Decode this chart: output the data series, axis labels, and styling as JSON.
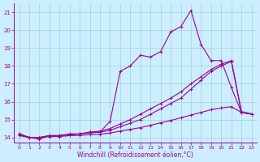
{
  "xlabel": "Windchill (Refroidissement éolien,°C)",
  "background_color": "#cceeff",
  "line_color": "#990099",
  "xlim": [
    -0.5,
    23.5
  ],
  "ylim": [
    13.7,
    21.5
  ],
  "yticks": [
    14,
    15,
    16,
    17,
    18,
    19,
    20,
    21
  ],
  "xticks": [
    0,
    1,
    2,
    3,
    4,
    5,
    6,
    7,
    8,
    9,
    10,
    11,
    12,
    13,
    14,
    15,
    16,
    17,
    18,
    19,
    20,
    21,
    22,
    23
  ],
  "series": [
    {
      "x": [
        0,
        1,
        2,
        3,
        4,
        5,
        6,
        7,
        8,
        9,
        10,
        11,
        12,
        13,
        14,
        15,
        16,
        17,
        18,
        19,
        20,
        21,
        22,
        23
      ],
      "y": [
        14.2,
        14.0,
        13.9,
        14.1,
        14.1,
        14.2,
        14.2,
        14.3,
        14.3,
        14.9,
        17.7,
        18.0,
        18.6,
        18.5,
        18.8,
        19.9,
        20.2,
        21.1,
        19.2,
        18.3,
        18.3,
        16.8,
        15.4,
        15.3
      ]
    },
    {
      "x": [
        0,
        1,
        2,
        3,
        4,
        5,
        6,
        7,
        8,
        9,
        10,
        11,
        12,
        13,
        14,
        15,
        16,
        17,
        18,
        19,
        20,
        21,
        22,
        23
      ],
      "y": [
        14.1,
        14.0,
        14.0,
        14.1,
        14.1,
        14.15,
        14.2,
        14.25,
        14.3,
        14.4,
        14.6,
        14.8,
        15.0,
        15.3,
        15.6,
        15.9,
        16.2,
        16.7,
        17.2,
        17.7,
        18.0,
        18.25,
        15.4,
        15.3
      ]
    },
    {
      "x": [
        0,
        1,
        2,
        3,
        4,
        5,
        6,
        7,
        8,
        9,
        10,
        11,
        12,
        13,
        14,
        15,
        16,
        17,
        18,
        19,
        20,
        21,
        22,
        23
      ],
      "y": [
        14.15,
        14.0,
        14.0,
        14.1,
        14.1,
        14.15,
        14.2,
        14.3,
        14.35,
        14.5,
        14.75,
        15.0,
        15.3,
        15.6,
        15.9,
        16.2,
        16.55,
        17.0,
        17.4,
        17.8,
        18.1,
        18.3,
        15.45,
        15.32
      ]
    },
    {
      "x": [
        0,
        1,
        2,
        3,
        4,
        5,
        6,
        7,
        8,
        9,
        10,
        11,
        12,
        13,
        14,
        15,
        16,
        17,
        18,
        19,
        20,
        21,
        22,
        23
      ],
      "y": [
        14.2,
        14.0,
        14.0,
        14.05,
        14.05,
        14.1,
        14.12,
        14.15,
        14.18,
        14.25,
        14.35,
        14.45,
        14.55,
        14.68,
        14.82,
        14.95,
        15.1,
        15.25,
        15.4,
        15.55,
        15.65,
        15.72,
        15.4,
        15.3
      ]
    }
  ]
}
